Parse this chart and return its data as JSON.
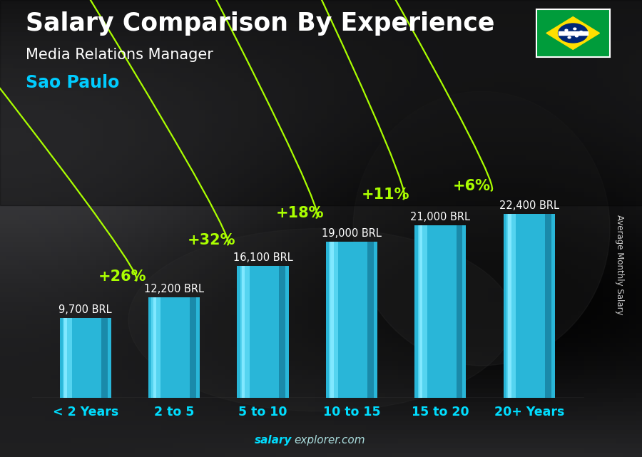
{
  "title": "Salary Comparison By Experience",
  "subtitle": "Media Relations Manager",
  "city": "Sao Paulo",
  "watermark_bold": "salary",
  "watermark_normal": "explorer.com",
  "ylabel": "Average Monthly Salary",
  "categories": [
    "< 2 Years",
    "2 to 5",
    "5 to 10",
    "10 to 15",
    "15 to 20",
    "20+ Years"
  ],
  "values": [
    9700,
    12200,
    16100,
    19000,
    21000,
    22400
  ],
  "value_labels": [
    "9,700 BRL",
    "12,200 BRL",
    "16,100 BRL",
    "19,000 BRL",
    "21,000 BRL",
    "22,400 BRL"
  ],
  "pct_changes": [
    "+26%",
    "+32%",
    "+18%",
    "+11%",
    "+6%"
  ],
  "bar_color_main": "#29b6d8",
  "bar_color_light": "#55d4f0",
  "bar_color_dark": "#1a8aaa",
  "bar_color_edge_light": "#80e8ff",
  "bg_color": "#1a1a1a",
  "title_color": "#ffffff",
  "subtitle_color": "#ffffff",
  "city_color": "#00ccff",
  "value_label_color": "#ffffff",
  "pct_color": "#aaff00",
  "arrow_color": "#aaff00",
  "watermark_bold_color": "#00ddff",
  "watermark_normal_color": "#aadddd",
  "ylabel_color": "#cccccc",
  "cat_color": "#00ddff",
  "ylim": [
    0,
    29000
  ],
  "title_fontsize": 25,
  "subtitle_fontsize": 15,
  "city_fontsize": 17,
  "value_fontsize": 10.5,
  "pct_fontsize": 15,
  "cat_fontsize": 12.5
}
